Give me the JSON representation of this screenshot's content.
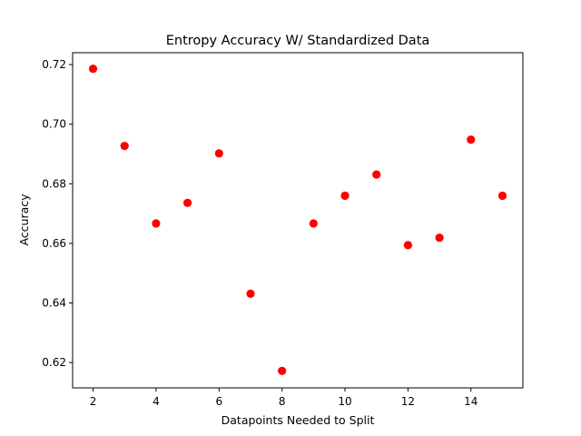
{
  "chart_data": {
    "type": "scatter",
    "title": "Entropy Accuracy W/ Standardized Data",
    "xlabel": "Datapoints Needed to Split",
    "ylabel": "Accuracy",
    "xlim": [
      1.35,
      15.65
    ],
    "ylim": [
      0.6115,
      0.724
    ],
    "xticks": [
      "2",
      "4",
      "6",
      "8",
      "10",
      "12",
      "14"
    ],
    "yticks": [
      "0.62",
      "0.64",
      "0.66",
      "0.68",
      "0.70",
      "0.72"
    ],
    "marker_color": "#ff0000",
    "grid": false,
    "series": [
      {
        "x": [
          2,
          3,
          4,
          5,
          6,
          7,
          8,
          9,
          10,
          11,
          12,
          13,
          14,
          15
        ],
        "y": [
          0.7186,
          0.6927,
          0.6667,
          0.6736,
          0.6902,
          0.6431,
          0.6172,
          0.6667,
          0.676,
          0.6831,
          0.6594,
          0.6619,
          0.6948,
          0.676
        ]
      }
    ]
  }
}
